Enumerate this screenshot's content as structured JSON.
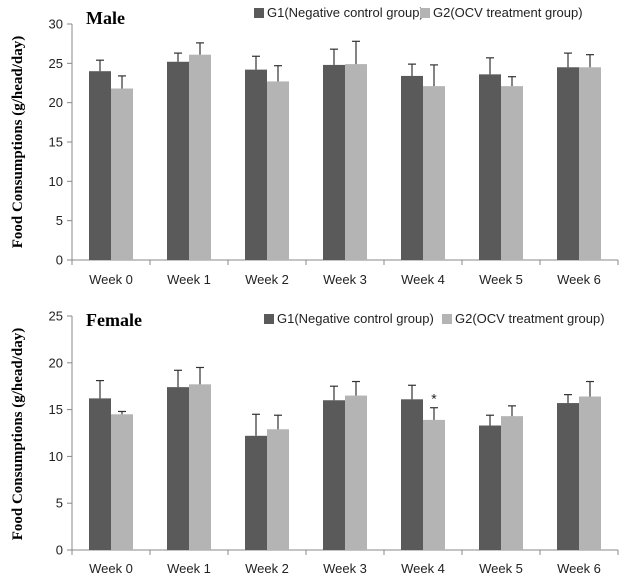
{
  "colors": {
    "g1": "#5a5a5a",
    "g2": "#b4b4b4",
    "axis": "#888888",
    "error": "#333333"
  },
  "chart_data": [
    {
      "type": "bar",
      "title": "Male",
      "ylabel": "Food Consumptions (g/head/day)",
      "ylim": [
        0,
        30
      ],
      "yticks": [
        0,
        5,
        10,
        15,
        20,
        25,
        30
      ],
      "grid": false,
      "legend_position": "top-right",
      "categories": [
        "Week 0",
        "Week 1",
        "Week 2",
        "Week 3",
        "Week 4",
        "Week 5",
        "Week 6"
      ],
      "series": [
        {
          "name": "G1(Negative control group)",
          "color": "#5a5a5a",
          "values": [
            24.0,
            25.2,
            24.2,
            24.8,
            23.4,
            23.6,
            24.5
          ],
          "errors": [
            1.4,
            1.1,
            1.7,
            2.0,
            1.5,
            2.1,
            1.8
          ]
        },
        {
          "name": "G2(OCV treatment group)",
          "color": "#b4b4b4",
          "values": [
            21.8,
            26.1,
            22.7,
            24.9,
            22.1,
            22.1,
            24.5
          ],
          "errors": [
            1.6,
            1.5,
            2.0,
            2.9,
            2.7,
            1.2,
            1.6
          ]
        }
      ],
      "annotations": []
    },
    {
      "type": "bar",
      "title": "Female",
      "ylabel": "Food Consumptions (g/head/day)",
      "ylim": [
        0,
        25
      ],
      "yticks": [
        0,
        5,
        10,
        15,
        20,
        25
      ],
      "grid": false,
      "legend_position": "top-right",
      "categories": [
        "Week 0",
        "Week 1",
        "Week 2",
        "Week 3",
        "Week 4",
        "Week 5",
        "Week 6"
      ],
      "series": [
        {
          "name": "G1(Negative control group)",
          "color": "#5a5a5a",
          "values": [
            16.2,
            17.4,
            12.2,
            16.0,
            16.1,
            13.3,
            15.7
          ],
          "errors": [
            1.9,
            1.8,
            2.3,
            1.5,
            1.5,
            1.1,
            0.9
          ]
        },
        {
          "name": "G2(OCV treatment group)",
          "color": "#b4b4b4",
          "values": [
            14.5,
            17.7,
            12.9,
            16.5,
            13.9,
            14.3,
            16.4
          ],
          "errors": [
            0.3,
            1.8,
            1.5,
            1.5,
            1.3,
            1.1,
            1.6
          ]
        }
      ],
      "annotations": [
        {
          "category": "Week 4",
          "series": 1,
          "text": "*"
        }
      ]
    }
  ]
}
